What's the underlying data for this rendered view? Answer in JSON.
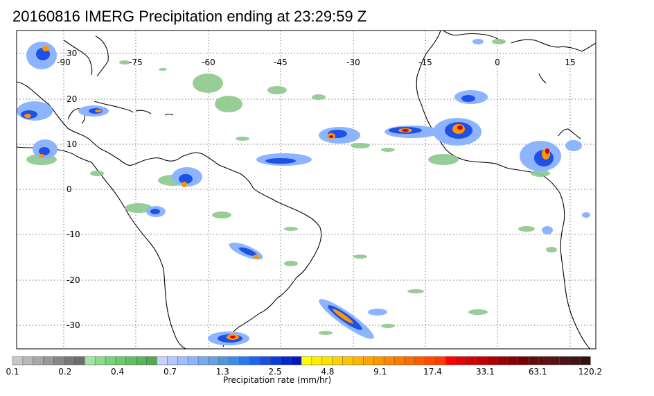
{
  "title": "20160816 IMERG Precipitation ending at 23:29:59 Z",
  "map": {
    "lon_labels": [
      "-90",
      "-75",
      "-60",
      "-45",
      "-30",
      "-15",
      "0",
      "15"
    ],
    "lat_labels": [
      "30",
      "20",
      "10",
      "0",
      "-10",
      "-20",
      "-30"
    ],
    "gridlines": "dotted"
  },
  "colorbar": {
    "labels": [
      "0.1",
      "0.2",
      "0.4",
      "0.7",
      "1.3",
      "2.5",
      "4.8",
      "9.1",
      "17.4",
      "33.1",
      "63.1",
      "120.2"
    ],
    "label": "Precipitation rate (mm/hr)",
    "colors": [
      "#c8c8c8",
      "#b8b8b8",
      "#a8a8a8",
      "#989898",
      "#888888",
      "#787878",
      "#6e6e6e",
      "#a0e6a0",
      "#8cdc8c",
      "#78d278",
      "#6ec86e",
      "#64be64",
      "#5ab45a",
      "#50aa50",
      "#c8d2ff",
      "#b4c8ff",
      "#a0beff",
      "#8cb4ff",
      "#78aaf0",
      "#64a0e6",
      "#5096dc",
      "#3c8cf0",
      "#2878f0",
      "#1e64f0",
      "#1450e6",
      "#0a3cdc",
      "#0028d2",
      "#0014c8",
      "#ffff00",
      "#fff000",
      "#ffe100",
      "#ffd200",
      "#ffc300",
      "#ffb400",
      "#ffa500",
      "#ff9600",
      "#ff8700",
      "#ff7800",
      "#ff6900",
      "#ff5a00",
      "#ff4b00",
      "#ff3c00",
      "#ff0000",
      "#eb0000",
      "#d70000",
      "#c30000",
      "#af0000",
      "#9b0000",
      "#870000",
      "#730000",
      "#690a0a",
      "#5f0f0f",
      "#551414",
      "#4b1414",
      "#411414",
      "#371010"
    ]
  }
}
